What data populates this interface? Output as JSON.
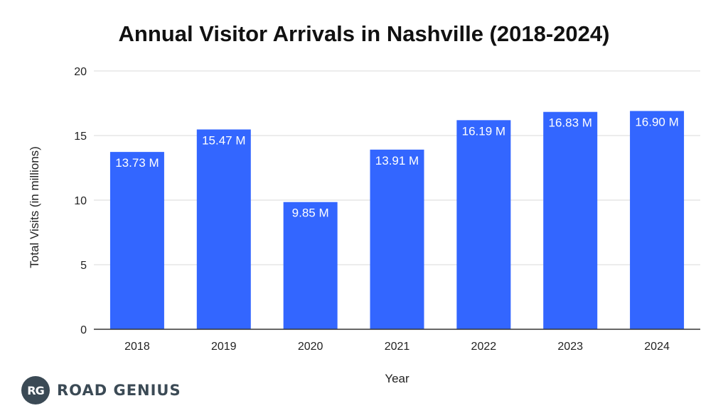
{
  "chart_data": {
    "type": "bar",
    "title": "Annual Visitor Arrivals in Nashville (2018-2024)",
    "xlabel": "Year",
    "ylabel": "Total Visits (in millions)",
    "categories": [
      "2018",
      "2019",
      "2020",
      "2021",
      "2022",
      "2023",
      "2024"
    ],
    "values": [
      13.73,
      15.47,
      9.85,
      13.91,
      16.19,
      16.83,
      16.9
    ],
    "data_labels": [
      "13.73 M",
      "15.47 M",
      "9.85 M",
      "13.91 M",
      "16.19 M",
      "16.83 M",
      "16.90 M"
    ],
    "ylim": [
      0,
      20
    ],
    "yticks": [
      "0",
      "5",
      "10",
      "15",
      "20"
    ],
    "grid": true,
    "legend": "none",
    "bar_color": "#3366ff"
  },
  "logo": {
    "badge": "RG",
    "text": "ROAD GENIUS"
  }
}
